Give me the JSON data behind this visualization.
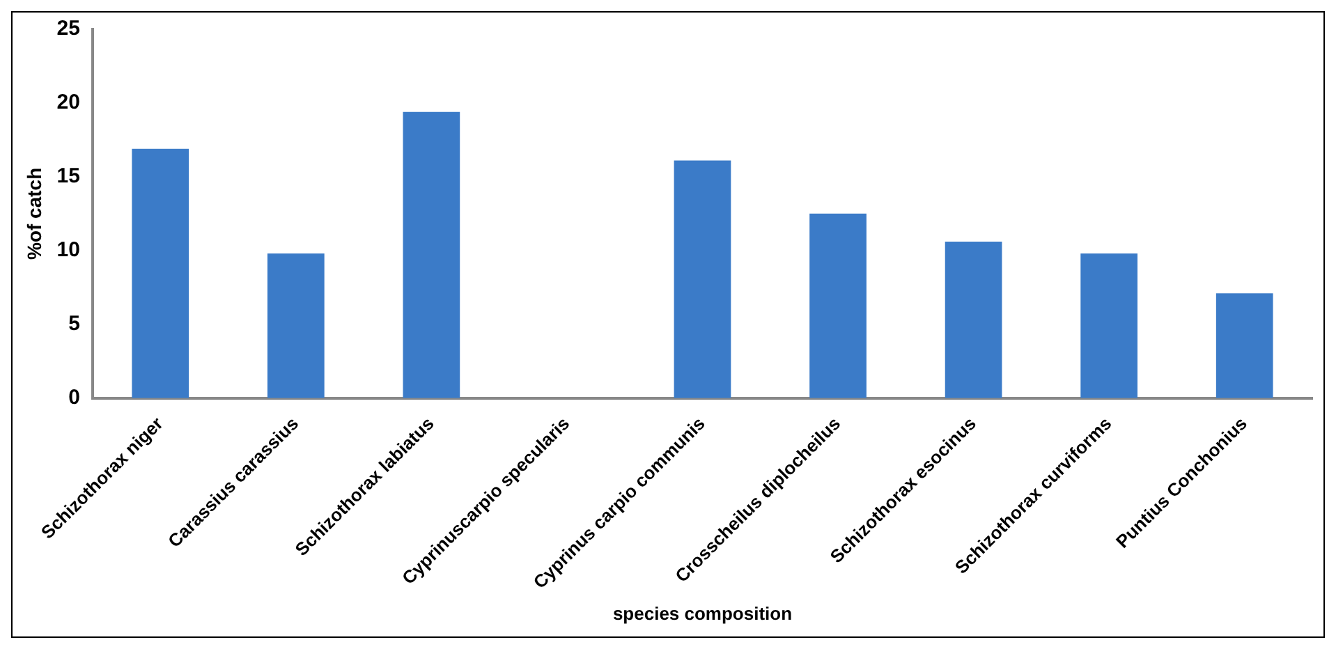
{
  "chart_data": {
    "type": "bar",
    "xlabel": "species composition",
    "ylabel": "%of catch",
    "categories": [
      "Schizothorax niger",
      "Carassius carassius",
      "Schizothorax labiatus",
      "Cyprinuscarpio specularis",
      "Cyprinus carpio communis",
      "Crosscheilus diplocheilus",
      "Schizothorax esocinus",
      "Schizothorax curviforms",
      "Puntius Conchonius"
    ],
    "values": [
      16.9,
      9.8,
      19.4,
      0,
      16.1,
      12.5,
      10.6,
      9.8,
      7.1
    ],
    "color": "#3b7bc8",
    "ylim": [
      0,
      25
    ],
    "yticks": [
      0,
      5,
      10,
      15,
      20,
      25
    ],
    "grid": false,
    "legend": false
  }
}
